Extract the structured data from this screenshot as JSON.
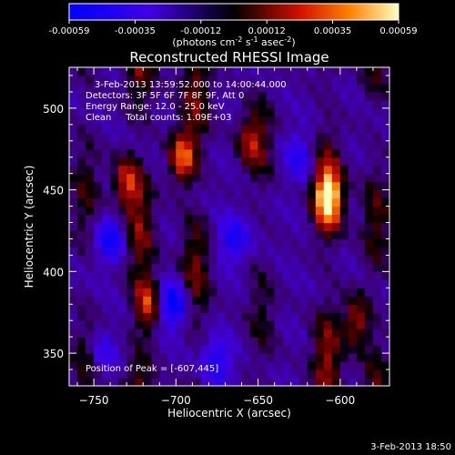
{
  "colorbar": {
    "ticks": [
      "-0.00059",
      "-0.00035",
      "-0.00012",
      "0.00012",
      "0.00035",
      "0.00059"
    ],
    "unit_parts": [
      "(photons cm",
      "-2",
      " s",
      "-1",
      " asec",
      "-2",
      ")"
    ]
  },
  "chart_data": {
    "type": "heatmap",
    "title": "Reconstructed RHESSI Image",
    "xlabel": "Heliocentric X (arcsec)",
    "ylabel": "Heliocentric Y (arcsec)",
    "xlim": [
      -765,
      -570
    ],
    "ylim": [
      330,
      525
    ],
    "xticks": [
      -750,
      -700,
      -650,
      -600
    ],
    "yticks": [
      350,
      400,
      450,
      500
    ],
    "value_range": [
      -0.00059,
      0.00059
    ],
    "annotations": [
      "3-Feb-2013 13:59:52.000 to 14:00:44.000",
      "Detectors: 3F 5F 6F 7F 8F 9F, Att 0",
      "Energy Range: 12.0 - 25.0 keV",
      "Clean     Total counts: 1.09E+03"
    ],
    "peak_label": "Position of Peak = [-607,445]",
    "peak": [
      -607,
      445
    ],
    "columns": [
      {
        "x": -755,
        "amp": 0.6,
        "sign": 1
      },
      {
        "x": -722,
        "amp": 0.9,
        "sign": 1
      },
      {
        "x": -688,
        "amp": 0.85,
        "sign": 1
      },
      {
        "x": -648,
        "amp": 0.5,
        "sign": 1
      },
      {
        "x": -608,
        "amp": 1.0,
        "sign": 1
      },
      {
        "x": -578,
        "amp": 0.7,
        "sign": 1
      }
    ],
    "hotspots": [
      {
        "x": -607,
        "y": 445,
        "v": 0.00059
      },
      {
        "x": -696,
        "y": 470,
        "v": 0.0005
      },
      {
        "x": -717,
        "y": 380,
        "v": 0.00045
      },
      {
        "x": -730,
        "y": 455,
        "v": 0.0004
      },
      {
        "x": -655,
        "y": 480,
        "v": 0.0003
      },
      {
        "x": -590,
        "y": 370,
        "v": 0.00035
      }
    ],
    "coldspots": [
      {
        "x": -702,
        "y": 380,
        "v": -0.00045
      },
      {
        "x": -740,
        "y": 420,
        "v": -0.00035
      },
      {
        "x": -665,
        "y": 420,
        "v": -0.0003
      },
      {
        "x": -625,
        "y": 470,
        "v": -0.00025
      },
      {
        "x": -745,
        "y": 350,
        "v": -0.0002
      },
      {
        "x": -675,
        "y": 345,
        "v": -0.0003
      }
    ]
  },
  "footer": {
    "timestamp": "3-Feb-2013 18:50"
  }
}
